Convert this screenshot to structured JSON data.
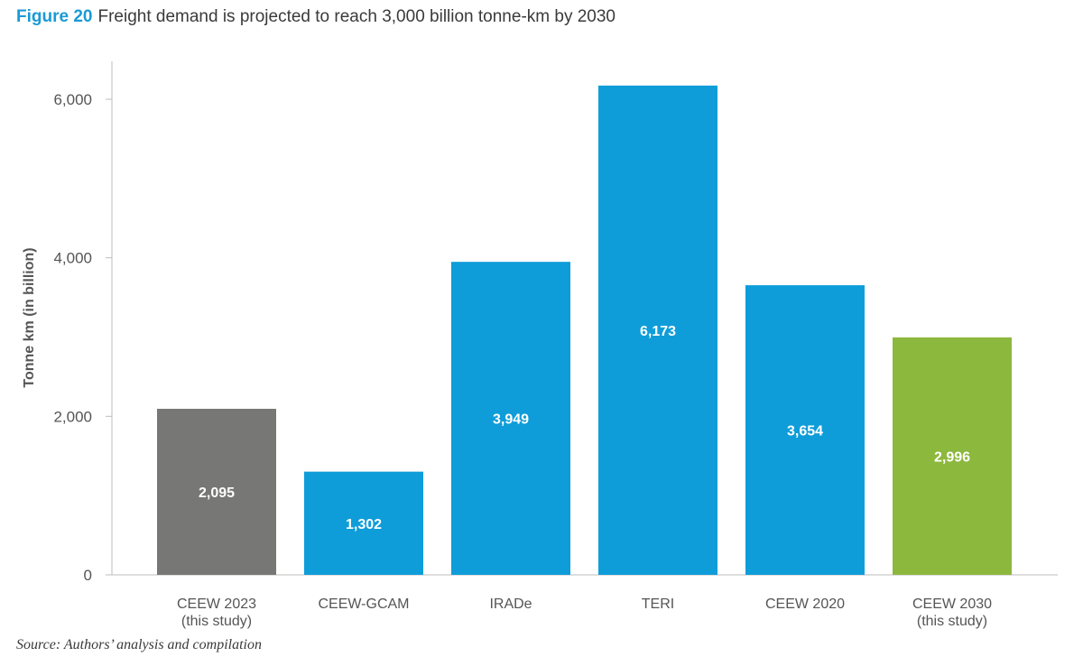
{
  "figure": {
    "number": "Figure 20",
    "title": "Freight demand is projected to reach 3,000 billion tonne-km by 2030"
  },
  "source": "Source: Authors’ analysis and compilation",
  "chart_data": {
    "type": "bar",
    "ylabel": "Tonne km (in billion)",
    "ylim": [
      0,
      6500
    ],
    "yticks": [
      0,
      2000,
      4000,
      6000
    ],
    "ytick_labels": [
      "0",
      "2,000",
      "4,000",
      "6,000"
    ],
    "categories": [
      [
        "CEEW 2023",
        "(this study)"
      ],
      [
        "CEEW-GCAM"
      ],
      [
        "IRADe"
      ],
      [
        "TERI"
      ],
      [
        "CEEW 2020"
      ],
      [
        "CEEW 2030",
        "(this study)"
      ]
    ],
    "values": [
      2095,
      1302,
      3949,
      6173,
      3654,
      2996
    ],
    "value_labels": [
      "2,095",
      "1,302",
      "3,949",
      "6,173",
      "3,654",
      "2,996"
    ],
    "colors": [
      "#777775",
      "#0f9dd9",
      "#0f9dd9",
      "#0f9dd9",
      "#0f9dd9",
      "#8cb83d"
    ],
    "axis_color": "#bdbdbd",
    "label_color": "#ffffff"
  }
}
